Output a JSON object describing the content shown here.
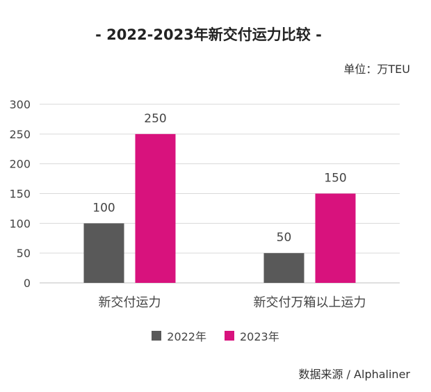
{
  "chart_data": {
    "type": "bar",
    "title": "- 2022-2023年新交付运力比较 -",
    "unit": "单位：万TEU",
    "source": "数据来源 / Alphaliner",
    "categories": [
      "新交付运力",
      "新交付万箱以上运力"
    ],
    "series": [
      {
        "name": "2022年",
        "color": "#595959",
        "values": [
          100,
          50
        ]
      },
      {
        "name": "2023年",
        "color": "#d8127d",
        "values": [
          250,
          150
        ]
      }
    ],
    "ylim": [
      0,
      300
    ],
    "yticks": [
      "0",
      "50",
      "100",
      "150",
      "200",
      "250",
      "300"
    ],
    "grid": true,
    "legend": "bottom"
  }
}
